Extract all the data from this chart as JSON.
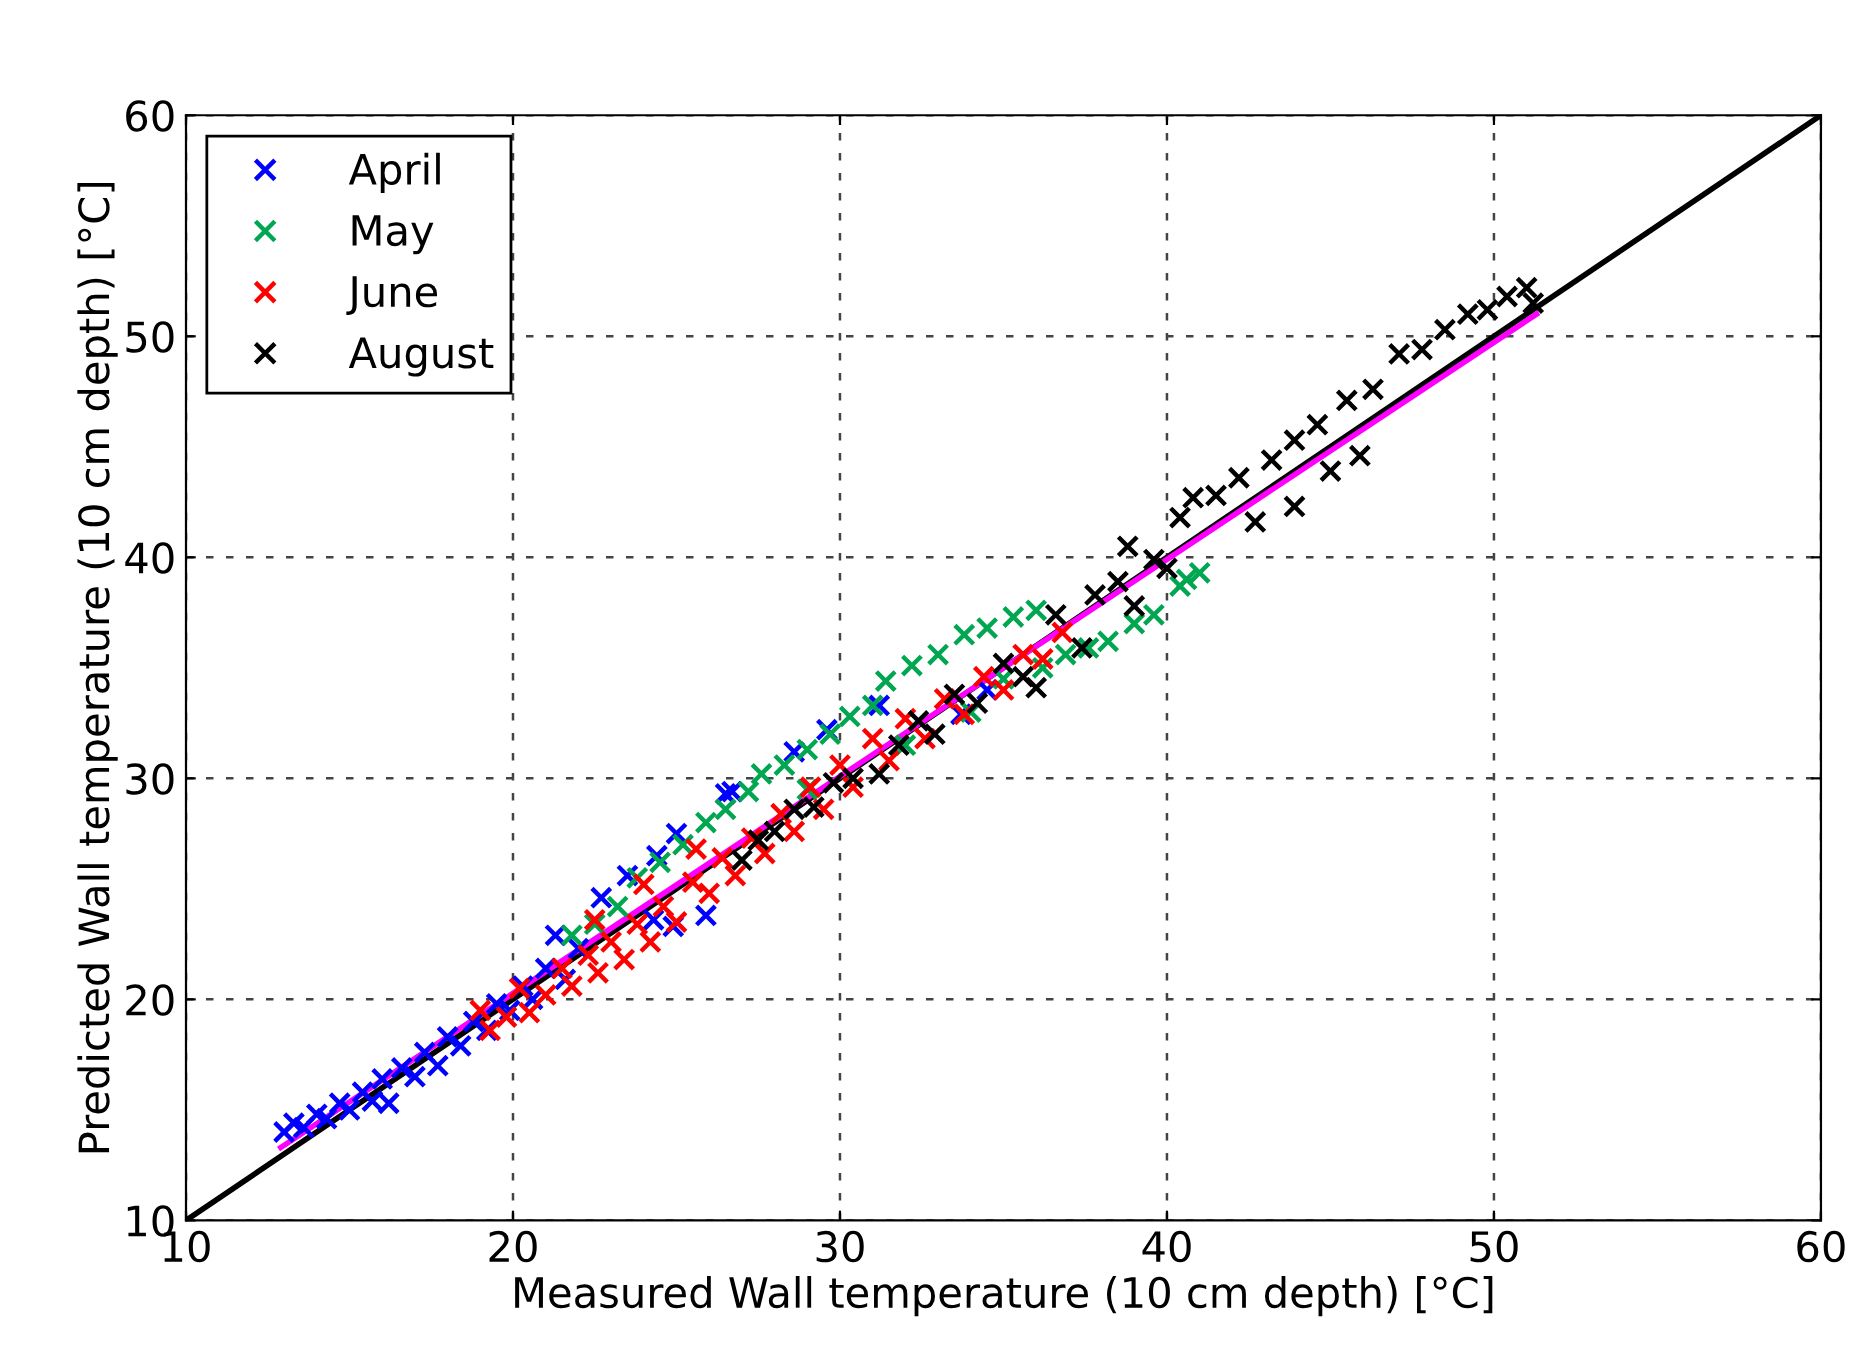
{
  "chart_data": {
    "type": "scatter",
    "xlabel": "Measured Wall temperature (10 cm depth) [°C]",
    "ylabel": "Predicted Wall temperature (10 cm depth) [°C]",
    "xlim": [
      10,
      60
    ],
    "ylim": [
      10,
      60
    ],
    "xticks": [
      10,
      20,
      30,
      40,
      50,
      60
    ],
    "yticks": [
      10,
      20,
      30,
      40,
      50,
      60
    ],
    "grid": true,
    "legend": "top left",
    "marker": "cross",
    "series": [
      {
        "name": "April",
        "color": "#0000ff",
        "x": [
          13.0,
          13.3,
          13.6,
          14.0,
          14.3,
          14.7,
          15.0,
          15.4,
          15.7,
          16.0,
          16.2,
          16.6,
          17.0,
          17.3,
          17.7,
          18.0,
          18.4,
          18.8,
          19.2,
          19.5,
          19.9,
          20.3,
          20.6,
          21.0,
          21.3,
          21.6,
          22.0,
          22.7,
          23.5,
          24.3,
          24.4,
          24.9,
          25.0,
          25.9,
          26.5,
          26.7,
          28.6,
          29.6,
          31.2,
          33.7,
          34.5
        ],
        "values": [
          14.0,
          14.4,
          14.2,
          14.8,
          14.6,
          15.3,
          15.0,
          15.8,
          15.4,
          16.4,
          15.3,
          16.9,
          16.5,
          17.6,
          17.0,
          18.3,
          17.9,
          19.0,
          18.6,
          19.8,
          19.5,
          20.6,
          20.0,
          21.4,
          22.9,
          20.9,
          22.3,
          24.6,
          25.6,
          23.6,
          26.5,
          23.3,
          27.5,
          23.8,
          29.3,
          29.4,
          31.2,
          32.2,
          33.3,
          32.9,
          34.0
        ]
      },
      {
        "name": "May",
        "color": "#00a650",
        "x": [
          21.8,
          22.5,
          23.2,
          23.8,
          24.5,
          25.2,
          25.9,
          26.5,
          27.2,
          27.6,
          28.3,
          29.0,
          29.7,
          30.3,
          31.0,
          31.4,
          32.2,
          33.0,
          33.8,
          34.5,
          35.3,
          36.0,
          35.0,
          36.2,
          36.9,
          37.6,
          38.2,
          39.0,
          39.6,
          40.4,
          40.6,
          41.0,
          29.0,
          32.0,
          34.0
        ],
        "values": [
          22.9,
          23.4,
          24.2,
          25.5,
          26.2,
          27.0,
          28.0,
          28.6,
          29.4,
          30.2,
          30.6,
          31.3,
          32.0,
          32.8,
          33.3,
          34.4,
          35.1,
          35.6,
          36.5,
          36.8,
          37.3,
          37.6,
          34.5,
          35.0,
          35.6,
          35.9,
          36.2,
          37.0,
          37.4,
          38.7,
          39.0,
          39.3,
          29.5,
          31.5,
          33.0
        ]
      },
      {
        "name": "June",
        "color": "#ff0000",
        "x": [
          19.0,
          19.3,
          19.8,
          20.2,
          20.5,
          21.0,
          21.5,
          21.8,
          22.3,
          22.6,
          23.0,
          23.4,
          23.8,
          24.2,
          24.6,
          25.0,
          25.5,
          26.0,
          26.4,
          26.8,
          27.3,
          27.7,
          28.2,
          28.6,
          29.1,
          29.5,
          30.0,
          30.4,
          31.0,
          31.5,
          32.0,
          32.6,
          33.2,
          33.8,
          34.4,
          35.0,
          35.6,
          36.2,
          36.8,
          22.5,
          24.0,
          25.6
        ],
        "values": [
          19.5,
          18.6,
          19.2,
          20.5,
          19.4,
          20.2,
          21.4,
          20.6,
          22.0,
          21.2,
          22.6,
          21.8,
          23.4,
          22.6,
          24.2,
          23.5,
          25.3,
          24.8,
          26.4,
          25.6,
          27.3,
          26.6,
          28.4,
          27.6,
          29.6,
          28.6,
          30.6,
          29.6,
          31.8,
          30.8,
          32.7,
          31.8,
          33.6,
          32.9,
          34.6,
          34.0,
          35.6,
          35.4,
          36.6,
          23.6,
          25.2,
          26.8
        ]
      },
      {
        "name": "August",
        "color": "#000000",
        "x": [
          27.0,
          27.5,
          28.0,
          28.6,
          29.2,
          29.8,
          30.4,
          31.2,
          31.8,
          32.4,
          32.9,
          33.5,
          34.2,
          35.0,
          35.6,
          36.0,
          36.6,
          37.4,
          37.8,
          38.5,
          39.0,
          39.6,
          40.4,
          40.8,
          41.5,
          42.2,
          42.7,
          43.2,
          43.9,
          43.9,
          44.6,
          45.0,
          45.5,
          45.9,
          46.3,
          47.1,
          47.8,
          48.5,
          49.2,
          49.8,
          50.4,
          51.0,
          51.2,
          38.8,
          40.0
        ],
        "values": [
          26.3,
          27.2,
          27.6,
          28.6,
          28.7,
          29.8,
          30.0,
          30.2,
          31.5,
          32.6,
          32.0,
          33.8,
          33.4,
          35.2,
          34.6,
          34.1,
          37.4,
          35.9,
          38.3,
          38.9,
          37.8,
          39.9,
          41.8,
          42.7,
          42.8,
          43.6,
          41.6,
          44.4,
          42.3,
          45.3,
          46.0,
          43.9,
          47.1,
          44.6,
          47.6,
          49.2,
          49.4,
          50.3,
          51.0,
          51.2,
          51.8,
          52.2,
          51.5,
          40.5,
          39.5
        ]
      },
      {
        "type": "line",
        "color": "#000000",
        "marker": "none",
        "x": [
          10,
          60
        ],
        "values": [
          10,
          60
        ]
      },
      {
        "type": "line",
        "color": "#ff00ff",
        "marker": "none",
        "x": [
          12.9,
          51.3
        ],
        "values": [
          13.3,
          51.0
        ]
      }
    ]
  }
}
